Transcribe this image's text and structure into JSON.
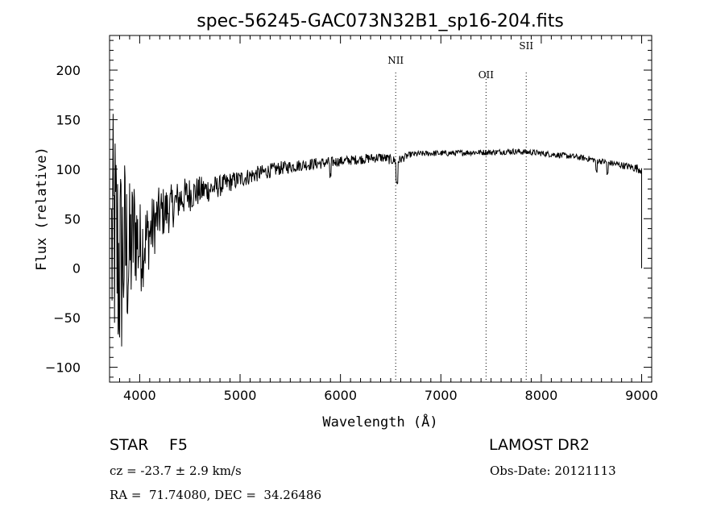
{
  "chart_data": {
    "type": "line",
    "title": "spec-56245-GAC073N32B1_sp16-204.fits",
    "xlabel": "Wavelength (Å)",
    "ylabel": "Flux (relative)",
    "xlim": [
      3700,
      9100
    ],
    "ylim": [
      -115,
      235
    ],
    "x_ticks": [
      4000,
      5000,
      6000,
      7000,
      8000,
      9000
    ],
    "y_ticks": [
      -100,
      -50,
      0,
      50,
      100,
      150,
      200
    ],
    "series": [
      {
        "name": "spectrum",
        "x": [
          3700,
          3750,
          3800,
          3850,
          3900,
          3950,
          4000,
          4100,
          4200,
          4300,
          4400,
          4500,
          4600,
          4700,
          4800,
          4900,
          5000,
          5200,
          5400,
          5600,
          5800,
          6000,
          6200,
          6400,
          6563,
          6700,
          6900,
          7100,
          7300,
          7500,
          7700,
          7900,
          8100,
          8300,
          8500,
          8700,
          8900,
          9000
        ],
        "y": [
          10,
          30,
          0,
          20,
          10,
          40,
          20,
          35,
          55,
          60,
          70,
          75,
          78,
          80,
          83,
          87,
          90,
          96,
          101,
          104,
          106,
          108,
          110,
          112,
          108,
          115,
          116,
          116,
          117,
          117,
          118,
          117,
          115,
          113,
          110,
          106,
          102,
          100
        ],
        "noise": [
          140,
          130,
          120,
          100,
          80,
          60,
          50,
          35,
          28,
          24,
          20,
          18,
          15,
          13,
          11,
          10,
          9,
          8,
          7,
          6,
          6,
          5,
          5,
          5,
          5,
          3,
          3,
          3,
          3,
          3,
          3,
          3,
          3,
          3,
          3,
          3,
          4,
          5
        ]
      }
    ],
    "line_markers": [
      {
        "label": "NII",
        "x": 6550
      },
      {
        "label": "OII",
        "x": 7450
      },
      {
        "label": "SII",
        "x": 7850
      }
    ]
  },
  "info": {
    "object_class": "STAR",
    "subclass": "F5",
    "survey": "LAMOST DR2",
    "redshift": "cz = -23.7 ± 2.9 km/s",
    "obs_date": "Obs-Date: 20121113",
    "coords": "RA =  71.74080, DEC =  34.26486"
  }
}
